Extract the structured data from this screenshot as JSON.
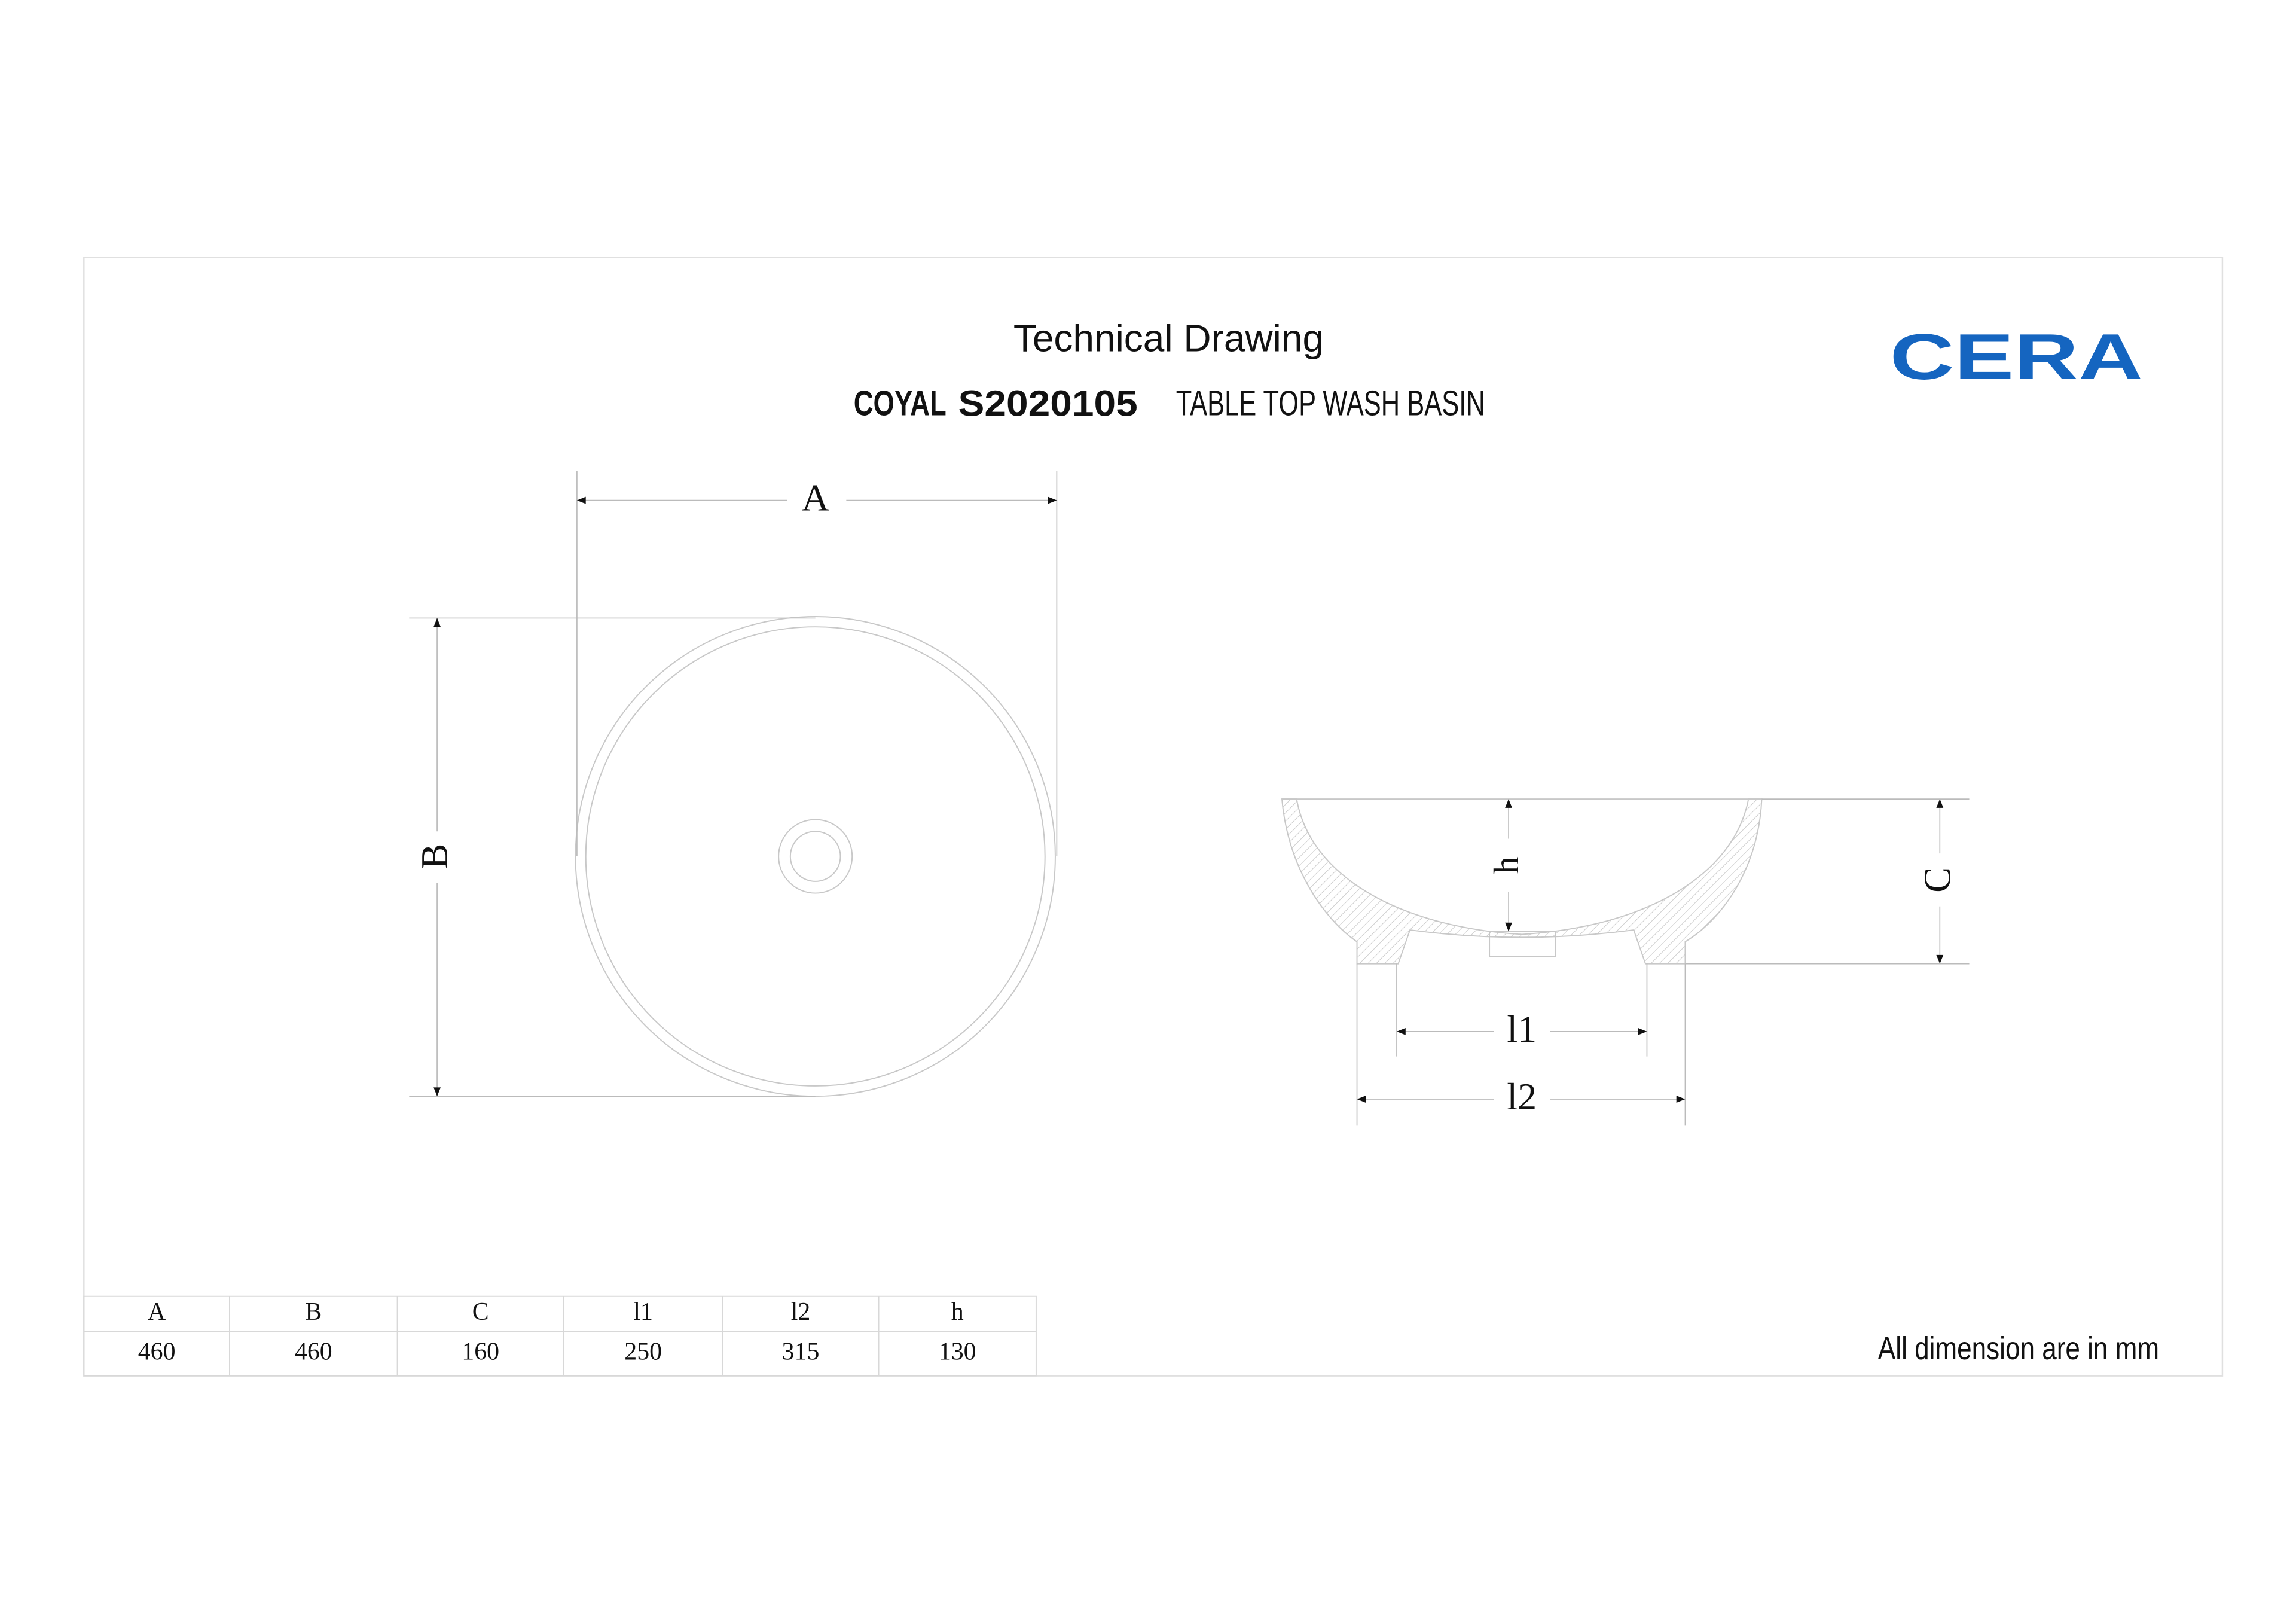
{
  "header": {
    "title": "Technical Drawing",
    "model": "COYAL",
    "code": "S2020105",
    "description": "TABLE TOP WASH BASIN",
    "brand": "CERA"
  },
  "table": {
    "headers": [
      "A",
      "B",
      "C",
      "l1",
      "l2",
      "h"
    ],
    "rows": [
      [
        460,
        460,
        160,
        250,
        315,
        130
      ]
    ]
  },
  "footer_note": "All dimension are in mm"
}
